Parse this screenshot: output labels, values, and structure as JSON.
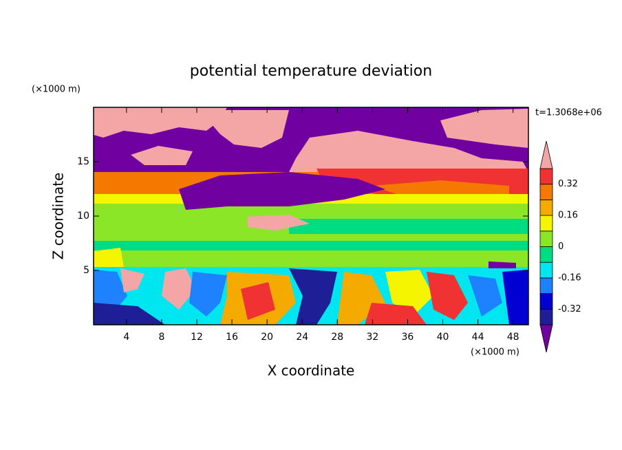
{
  "chart_data": {
    "type": "contour",
    "title": "potential temperature deviation",
    "xlabel": "X coordinate",
    "ylabel": "Z coordinate",
    "xunit": "(×1000 m)",
    "yunit": "(×1000 m)",
    "annotation": "t=1.3068e+06",
    "xlim": [
      0.25,
      49.75
    ],
    "ylim": [
      0,
      20
    ],
    "xticks": [
      4,
      8,
      12,
      16,
      20,
      24,
      28,
      32,
      36,
      40,
      44,
      48
    ],
    "yticks": [
      5,
      10,
      15
    ],
    "colorbar": {
      "levels": [
        -0.4,
        -0.32,
        -0.24,
        -0.16,
        -0.08,
        0,
        0.08,
        0.16,
        0.24,
        0.32,
        0.4
      ],
      "ticks": [
        -0.32,
        -0.16,
        0,
        0.16,
        0.32
      ],
      "colors": [
        "#7000a0",
        "#1e1e96",
        "#0000d2",
        "#1e82ff",
        "#00e6f0",
        "#00dc82",
        "#8ce628",
        "#f5f500",
        "#f5aa00",
        "#f57800",
        "#f03232",
        "#f4a6a6"
      ]
    }
  }
}
